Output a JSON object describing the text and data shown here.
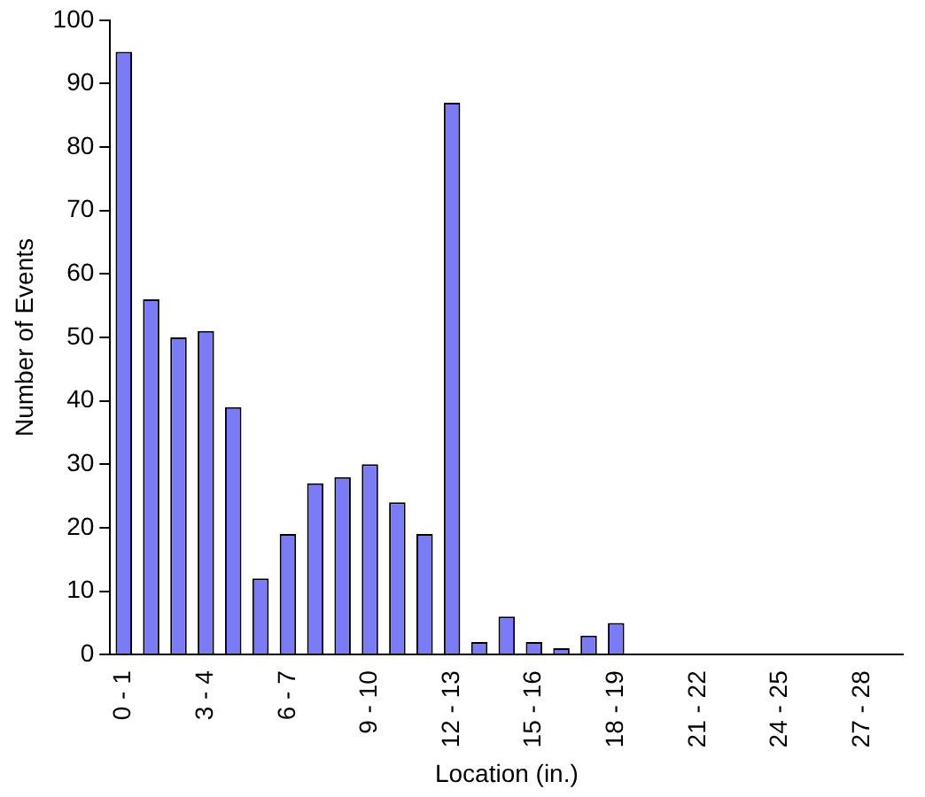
{
  "chart_data": {
    "type": "bar",
    "xlabel": "Location (in.)",
    "ylabel": "Number of Events",
    "categories": [
      "0 - 1",
      null,
      null,
      "3 - 4",
      null,
      null,
      "6 - 7",
      null,
      null,
      "9 - 10",
      null,
      null,
      "12 - 13",
      null,
      null,
      "15 - 16",
      null,
      null,
      "18 - 19",
      null,
      null,
      "21 - 22",
      null,
      null,
      "24 - 25",
      null,
      null,
      "27 - 28",
      null
    ],
    "values": [
      95,
      56,
      50,
      51,
      39,
      12,
      19,
      27,
      28,
      30,
      24,
      19,
      87,
      2,
      6,
      2,
      1,
      3,
      5,
      0,
      0,
      0,
      0,
      0,
      0,
      0,
      0,
      0,
      0
    ],
    "color": "#7b7bf5",
    "ylim": [
      0,
      100
    ],
    "yticks": [
      0,
      10,
      20,
      30,
      40,
      50,
      60,
      70,
      80,
      90,
      100
    ],
    "grid": false,
    "legend": false
  }
}
